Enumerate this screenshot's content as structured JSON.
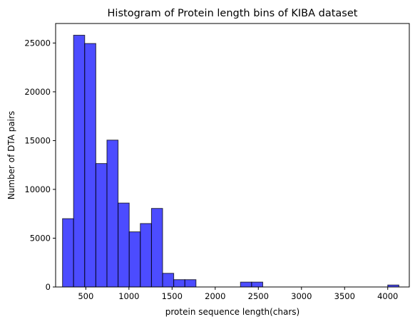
{
  "chart_data": {
    "type": "bar",
    "title": "Histogram of Protein length bins of KIBA dataset",
    "xlabel": "protein sequence length(chars)",
    "ylabel": "Number of DTA pairs",
    "xlim": [
      150,
      4250
    ],
    "ylim": [
      0,
      27000
    ],
    "x_ticks": [
      500,
      1000,
      1500,
      2000,
      2500,
      3000,
      3500,
      4000
    ],
    "y_ticks": [
      0,
      5000,
      10000,
      15000,
      20000,
      25000
    ],
    "bar_color": "#0000ff",
    "bar_alpha": 0.7,
    "edge_color": "#000000",
    "grid": false,
    "bins": [
      {
        "x0": 230,
        "x1": 358,
        "value": 7000
      },
      {
        "x0": 358,
        "x1": 487,
        "value": 25800
      },
      {
        "x0": 487,
        "x1": 616,
        "value": 24950
      },
      {
        "x0": 616,
        "x1": 745,
        "value": 12650
      },
      {
        "x0": 745,
        "x1": 874,
        "value": 15050
      },
      {
        "x0": 874,
        "x1": 1003,
        "value": 8600
      },
      {
        "x0": 1003,
        "x1": 1132,
        "value": 5650
      },
      {
        "x0": 1132,
        "x1": 1261,
        "value": 6500
      },
      {
        "x0": 1261,
        "x1": 1390,
        "value": 8050
      },
      {
        "x0": 1390,
        "x1": 1519,
        "value": 1400
      },
      {
        "x0": 1519,
        "x1": 1648,
        "value": 750
      },
      {
        "x0": 1648,
        "x1": 1777,
        "value": 750
      },
      {
        "x0": 2293,
        "x1": 2422,
        "value": 500
      },
      {
        "x0": 2422,
        "x1": 2551,
        "value": 500
      },
      {
        "x0": 4000,
        "x1": 4129,
        "value": 200
      }
    ]
  }
}
